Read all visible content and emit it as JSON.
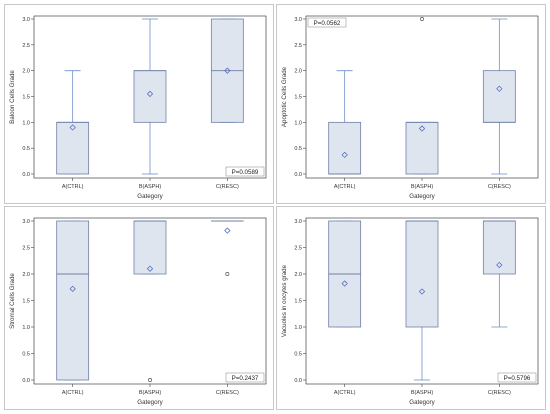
{
  "chart_data": [
    {
      "type": "box",
      "xlabel": "Gategory",
      "ylabel": "Baloon Cells Grade",
      "categories": [
        "A(CTRL)",
        "B(ASPH)",
        "C(RESC)"
      ],
      "ylim": [
        0,
        3
      ],
      "yticks": [
        "0.0",
        "0.5",
        "1.0",
        "1.5",
        "2.0",
        "2.5",
        "3.0"
      ],
      "boxes": [
        {
          "min": 0,
          "q1": 0,
          "median": 1,
          "q3": 1,
          "max": 2,
          "mean": 0.9,
          "outliers": []
        },
        {
          "min": 0,
          "q1": 1,
          "median": 2,
          "q3": 2,
          "max": 3,
          "mean": 1.55,
          "outliers": []
        },
        {
          "min": 1,
          "q1": 1,
          "median": 2,
          "q3": 3,
          "max": 3,
          "mean": 2.0,
          "outliers": []
        }
      ],
      "pvalue": "P=0.0589",
      "pvalue_position": "bottom-right"
    },
    {
      "type": "box",
      "xlabel": "Gategory",
      "ylabel": "Apoptotic Cells Grade",
      "categories": [
        "A(CTRL)",
        "B(ASPH)",
        "C(RESC)"
      ],
      "ylim": [
        0,
        3
      ],
      "yticks": [
        "0.0",
        "0.5",
        "1.0",
        "1.5",
        "2.0",
        "2.5",
        "3.0"
      ],
      "boxes": [
        {
          "min": 0,
          "q1": 0,
          "median": 0,
          "q3": 1,
          "max": 2,
          "mean": 0.37,
          "outliers": []
        },
        {
          "min": 0,
          "q1": 0,
          "median": 1,
          "q3": 1,
          "max": 1,
          "mean": 0.88,
          "outliers": [
            3
          ]
        },
        {
          "min": 0,
          "q1": 1,
          "median": 1,
          "q3": 2,
          "max": 3,
          "mean": 1.65,
          "outliers": []
        }
      ],
      "pvalue": "P=0.0562",
      "pvalue_position": "top-left"
    },
    {
      "type": "box",
      "xlabel": "Gategory",
      "ylabel": "Stromal Cells Grade",
      "categories": [
        "A(CTRL)",
        "B(ASPH)",
        "C(RESC)"
      ],
      "ylim": [
        0,
        3
      ],
      "yticks": [
        "0.0",
        "0.5",
        "1.0",
        "1.5",
        "2.0",
        "2.5",
        "3.0"
      ],
      "boxes": [
        {
          "min": 0,
          "q1": 0,
          "median": 2,
          "q3": 3,
          "max": 3,
          "mean": 1.72,
          "outliers": []
        },
        {
          "min": 2,
          "q1": 2,
          "median": 3,
          "q3": 3,
          "max": 3,
          "mean": 2.1,
          "outliers": [
            0
          ]
        },
        {
          "min": 3,
          "q1": 3,
          "median": 3,
          "q3": 3,
          "max": 3,
          "mean": 2.82,
          "outliers": [
            2
          ]
        }
      ],
      "pvalue": "P=0.2437",
      "pvalue_position": "bottom-right"
    },
    {
      "type": "box",
      "xlabel": "Gategory",
      "ylabel": "Vacuoles in oocytes grade",
      "categories": [
        "A(CTRL)",
        "B(ASPH)",
        "C(RESC)"
      ],
      "ylim": [
        0,
        3
      ],
      "yticks": [
        "0.0",
        "0.5",
        "1.0",
        "1.5",
        "2.0",
        "2.5",
        "3.0"
      ],
      "boxes": [
        {
          "min": 1,
          "q1": 1,
          "median": 2,
          "q3": 3,
          "max": 3,
          "mean": 1.82,
          "outliers": []
        },
        {
          "min": 0,
          "q1": 1,
          "median": 3,
          "q3": 3,
          "max": 3,
          "mean": 1.67,
          "outliers": []
        },
        {
          "min": 1,
          "q1": 2,
          "median": 3,
          "q3": 3,
          "max": 3,
          "mean": 2.17,
          "outliers": []
        }
      ],
      "pvalue": "P=0.5796",
      "pvalue_position": "bottom-right"
    }
  ],
  "colors": {
    "box_fill": "#dfe5ee",
    "box_stroke": "#6f7fa8",
    "whisker": "#6f8ec8",
    "mean_marker": "#5a72c4",
    "axis": "#444444",
    "panel_border": "#c8c8c8"
  }
}
